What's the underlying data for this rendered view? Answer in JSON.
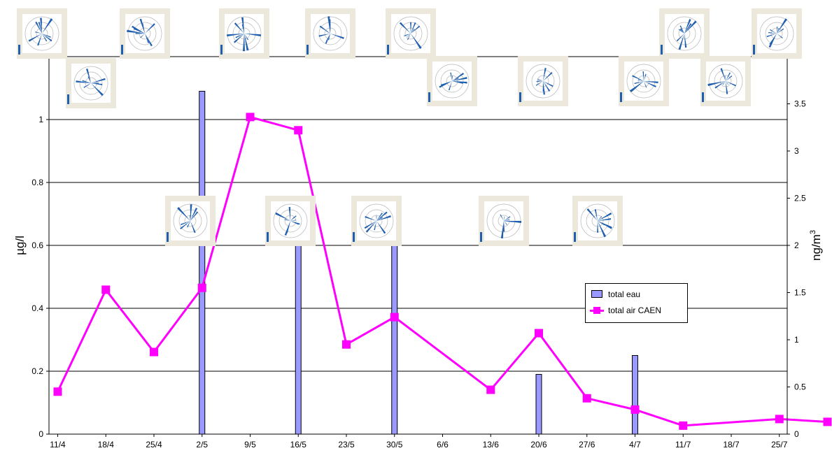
{
  "chart_data": {
    "type": "bar+line",
    "x_categories": [
      "11/4",
      "18/4",
      "25/4",
      "2/5",
      "9/5",
      "16/5",
      "23/5",
      "30/5",
      "6/6",
      "13/6",
      "20/6",
      "27/6",
      "4/7",
      "11/7",
      "18/7",
      "25/7"
    ],
    "left_axis": {
      "label": "µg/l",
      "ylim": [
        0,
        1.2
      ],
      "ticks": [
        "0",
        "0.2",
        "0.4",
        "0.6",
        "0.8",
        "1"
      ]
    },
    "right_axis": {
      "label": "ng/m",
      "label_superscript": "3",
      "ylim": [
        0,
        4
      ],
      "ticks": [
        "0",
        "0.5",
        "1",
        "1.5",
        "2",
        "2.5",
        "3",
        "3.5"
      ]
    },
    "series": [
      {
        "name": "total eau",
        "type": "bar",
        "axis": "left",
        "color": "#9999ff",
        "points": [
          {
            "date": "2/5",
            "value": 1.09
          },
          {
            "date": "16/5",
            "value": 0.65
          },
          {
            "date": "30/5",
            "value": 0.65
          },
          {
            "date": "20/6",
            "value": 0.19
          },
          {
            "date": "4/7",
            "value": 0.25
          }
        ]
      },
      {
        "name": "total air CAEN",
        "type": "line",
        "axis": "right",
        "color": "#ff00ff",
        "points": [
          {
            "date": "11/4",
            "value": 0.45
          },
          {
            "date": "18/4",
            "value": 1.53
          },
          {
            "date": "25/4",
            "value": 0.87
          },
          {
            "date": "2/5",
            "value": 1.55
          },
          {
            "date": "9/5",
            "value": 3.36
          },
          {
            "date": "16/5",
            "value": 3.22
          },
          {
            "date": "23/5",
            "value": 0.95
          },
          {
            "date": "30/5",
            "value": 1.24
          },
          {
            "date": "13/6",
            "value": 0.47
          },
          {
            "date": "20/6",
            "value": 1.07
          },
          {
            "date": "27/6",
            "value": 0.38
          },
          {
            "date": "4/7",
            "value": 0.26
          },
          {
            "date": "11/7",
            "value": 0.09
          },
          {
            "date": "25/7",
            "value": 0.16
          },
          {
            "date": "1/8",
            "value": 0.13
          }
        ]
      }
    ],
    "gridlines": "horizontal",
    "legend_position": "right"
  },
  "wind_roses": {
    "count": 18,
    "icon": "wind-rose-thumbnail",
    "colors": {
      "panel": "#ece9dc",
      "petal": "#1f5fb0",
      "ring": "#b5b5b5"
    }
  }
}
